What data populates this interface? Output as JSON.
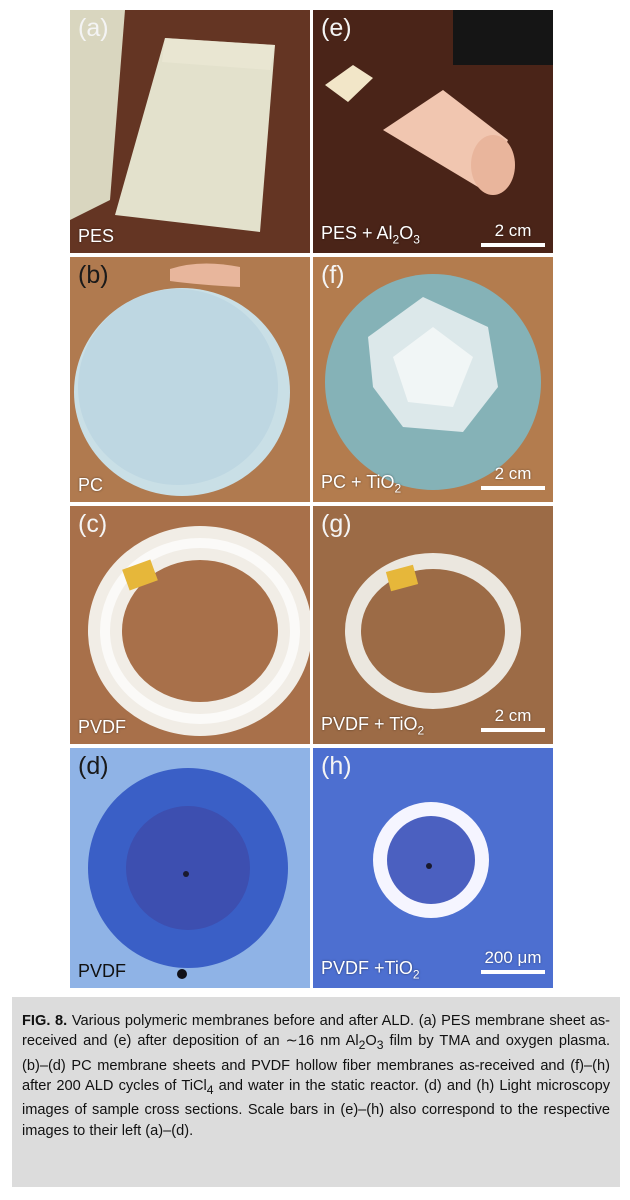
{
  "panels": {
    "a": {
      "letter": "(a)",
      "name": "PES"
    },
    "e": {
      "letter": "(e)",
      "name_prefix": "PES + Al",
      "sub1": "2",
      "name_mid": "O",
      "sub2": "3",
      "scale": "2 cm"
    },
    "b": {
      "letter": "(b)",
      "name": "PC"
    },
    "f": {
      "letter": "(f)",
      "name_prefix": "PC + TiO",
      "sub1": "2",
      "scale": "2 cm"
    },
    "c": {
      "letter": "(c)",
      "name": "PVDF"
    },
    "g": {
      "letter": "(g)",
      "name_prefix": "PVDF + TiO",
      "sub1": "2",
      "scale": "2 cm"
    },
    "d": {
      "letter": "(d)",
      "name": "PVDF"
    },
    "h": {
      "letter": "(h)",
      "name_prefix": "PVDF +TiO",
      "sub1": "2",
      "scale": "200 μm"
    }
  },
  "caption": {
    "label": "FIG. 8.",
    "part1": " Various polymeric membranes before and after ALD. (a) PES membrane sheet as-received and (e) after deposition of an ∼16 nm Al",
    "sub1": "2",
    "part2": "O",
    "sub2": "3",
    "part3": " film by TMA and oxygen plasma. (b)–(d) PC membrane sheets and PVDF hollow fiber membranes as-received and (f)–(h) after 200 ALD cycles of TiCl",
    "sub3": "4",
    "part4": " and water in the static reactor. (d) and (h) Light microscopy images of sample cross sections. Scale bars in (e)–(h) also correspond to the respective images to their left (a)–(d)."
  }
}
